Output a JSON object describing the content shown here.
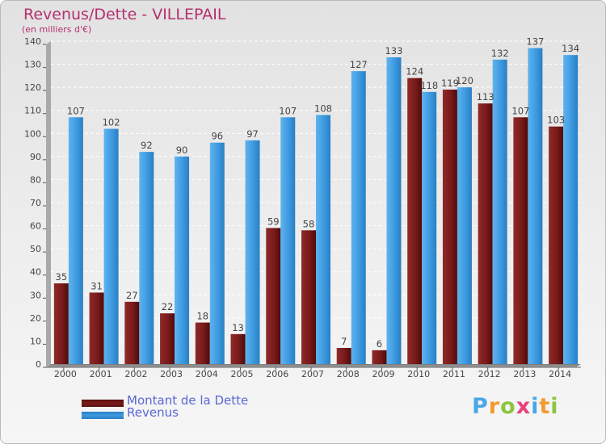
{
  "title": "Revenus/Dette - VILLEPAIL",
  "subtitle": "(en milliers d'€)",
  "colors": {
    "dette": "#7a1a1a",
    "revenus": "#3d9ae0",
    "title": "#b5306e",
    "legend_text": "#5b67d6"
  },
  "logo": {
    "text": "Proxiti",
    "letters": [
      {
        "ch": "P",
        "color": "#4aa7e6"
      },
      {
        "ch": "r",
        "color": "#f29a2e"
      },
      {
        "ch": "o",
        "color": "#8cc63e"
      },
      {
        "ch": "x",
        "color": "#e8417e"
      },
      {
        "ch": "i",
        "color": "#4aa7e6"
      },
      {
        "ch": "t",
        "color": "#f29a2e"
      },
      {
        "ch": "i",
        "color": "#8cc63e"
      }
    ]
  },
  "legend": [
    {
      "label": "Montant de la Dette",
      "color": "#7a1a1a"
    },
    {
      "label": "Revenus",
      "color": "#3d9ae0"
    }
  ],
  "chart_data": {
    "type": "bar",
    "title": "Revenus/Dette - VILLEPAIL",
    "subtitle": "(en milliers d'€)",
    "categories": [
      "2000",
      "2001",
      "2002",
      "2003",
      "2004",
      "2005",
      "2006",
      "2007",
      "2008",
      "2009",
      "2010",
      "2011",
      "2012",
      "2013",
      "2014"
    ],
    "series": [
      {
        "name": "Montant de la Dette",
        "values": [
          35,
          31,
          27,
          22,
          18,
          13,
          59,
          58,
          7,
          6,
          124,
          119,
          113,
          107,
          103
        ]
      },
      {
        "name": "Revenus",
        "values": [
          107,
          102,
          92,
          90,
          96,
          97,
          107,
          108,
          127,
          133,
          118,
          120,
          132,
          137,
          134
        ]
      }
    ],
    "ylim": [
      0,
      140
    ],
    "yticks": [
      0,
      10,
      20,
      30,
      40,
      50,
      60,
      70,
      80,
      90,
      100,
      110,
      120,
      130,
      140
    ],
    "grid": true,
    "legend_position": "bottom-left"
  }
}
